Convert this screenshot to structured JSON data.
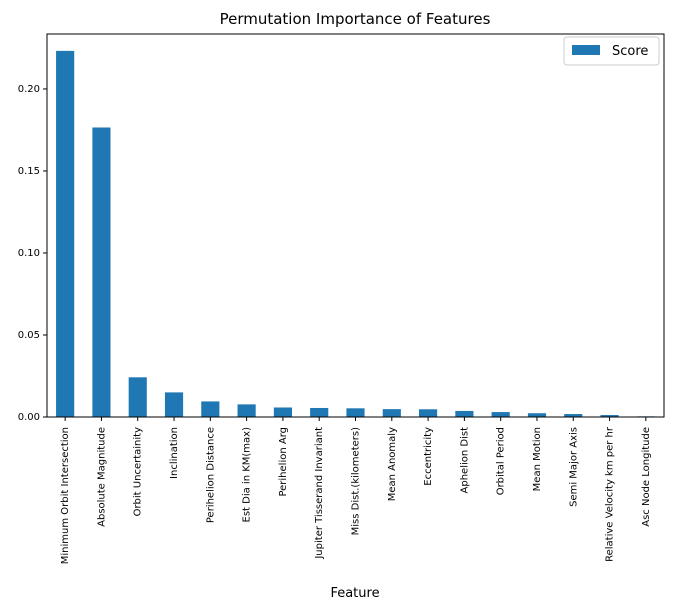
{
  "chart_data": {
    "type": "bar",
    "title": "Permutation Importance of Features",
    "xlabel": "Feature",
    "ylabel": "",
    "ylim": [
      0,
      0.2335
    ],
    "yticks": [
      "0.00",
      "0.05",
      "0.10",
      "0.15",
      "0.20"
    ],
    "ytick_values": [
      0,
      0.05,
      0.1,
      0.15,
      0.2
    ],
    "legend": {
      "position": "top-right",
      "label": "Score"
    },
    "grid": false,
    "bar_color": "#1f77b4",
    "categories": [
      "Minimum Orbit Intersection",
      "Absolute Magnitude",
      "Orbit Uncertainity",
      "Inclination",
      "Perihelion Distance",
      "Est Dia in KM(max)",
      "Perihelion Arg",
      "Jupiter Tisserand Invariant",
      "Miss Dist.(kilometers)",
      "Mean Anomaly",
      "Eccentricity",
      "Aphelion Dist",
      "Orbital Period",
      "Mean Motion",
      "Semi Major Axis",
      "Relative Velocity km per hr",
      "Asc Node Longitude"
    ],
    "series": [
      {
        "name": "Score",
        "values": [
          0.2232,
          0.1765,
          0.0242,
          0.015,
          0.0095,
          0.0077,
          0.0058,
          0.0055,
          0.0053,
          0.0048,
          0.0047,
          0.0037,
          0.003,
          0.0023,
          0.0018,
          0.0012,
          0.0004
        ]
      }
    ]
  }
}
